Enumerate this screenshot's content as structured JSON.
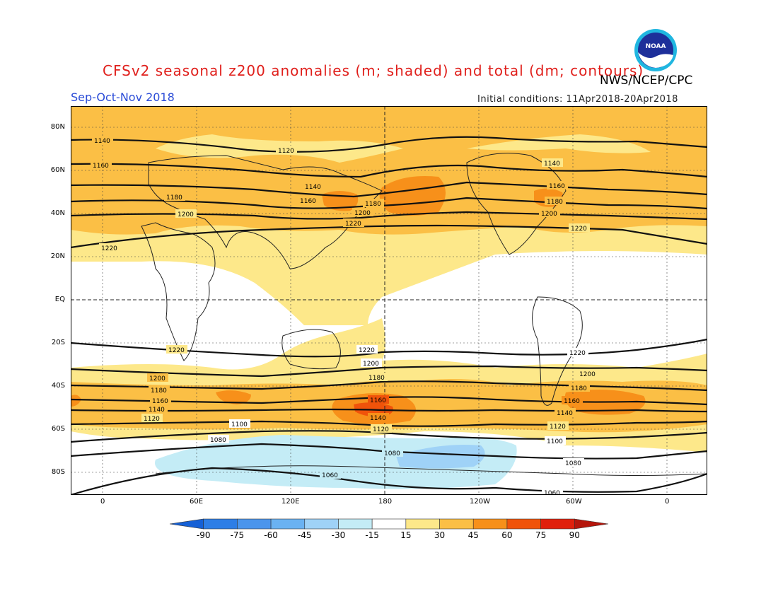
{
  "header": {
    "title": "CFSv2 seasonal z200 anomalies (m; shaded) and total (dm; contours)",
    "agency": "NWS/NCEP/CPC",
    "season": "Sep-Oct-Nov 2018",
    "initial_conditions": "Initial conditions: 11Apr2018-20Apr2018",
    "logo_text": "NOAA"
  },
  "map": {
    "latitude_labels": [
      "80N",
      "60N",
      "40N",
      "20N",
      "EQ",
      "20S",
      "40S",
      "60S",
      "80S"
    ],
    "longitude_labels": [
      "0",
      "60E",
      "120E",
      "180",
      "120W",
      "60W",
      "0"
    ],
    "contour_labels": [
      "1140",
      "1120",
      "1160",
      "1140",
      "1180",
      "1200",
      "1160",
      "1140",
      "1180",
      "1200",
      "1220",
      "1160",
      "1180",
      "1200",
      "1220",
      "1220",
      "1220",
      "1220",
      "1220",
      "1200",
      "1200",
      "1200",
      "1180",
      "1180",
      "1180",
      "1160",
      "1160",
      "1160",
      "1140",
      "1140",
      "1140",
      "1120",
      "1120",
      "1120",
      "1100",
      "1100",
      "1080",
      "1080",
      "1080",
      "1060",
      "1060"
    ]
  },
  "colorbar": {
    "ticks": [
      "-90",
      "-75",
      "-60",
      "-45",
      "-30",
      "-15",
      "15",
      "30",
      "45",
      "60",
      "75",
      "90"
    ],
    "colors": [
      "#1560d6",
      "#2e7ee6",
      "#4b95ec",
      "#6ab2f2",
      "#9fd2f7",
      "#c4ecf6",
      "#ffffff",
      "#fde88a",
      "#fbbf45",
      "#f7901a",
      "#f0530a",
      "#e0200c",
      "#b5160c"
    ]
  }
}
